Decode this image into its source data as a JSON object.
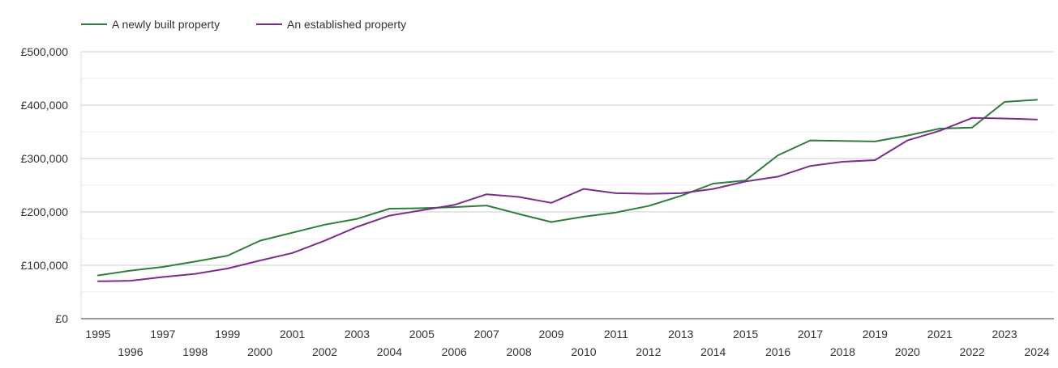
{
  "chart_data": {
    "type": "line",
    "title": "",
    "xlabel": "",
    "ylabel": "",
    "x": [
      "1995",
      "1996",
      "1997",
      "1998",
      "1999",
      "2000",
      "2001",
      "2002",
      "2003",
      "2004",
      "2005",
      "2006",
      "2007",
      "2008",
      "2009",
      "2010",
      "2011",
      "2012",
      "2013",
      "2014",
      "2015",
      "2016",
      "2017",
      "2018",
      "2019",
      "2020",
      "2021",
      "2022",
      "2023",
      "2024"
    ],
    "ylim": [
      0,
      500000
    ],
    "y_ticks": [
      0,
      100000,
      200000,
      300000,
      400000,
      500000
    ],
    "y_tick_labels": [
      "£0",
      "£100,000",
      "£200,000",
      "£300,000",
      "£400,000",
      "£500,000"
    ],
    "grid": true,
    "legend_position": "top-left",
    "series": [
      {
        "name": "A newly built property",
        "color": "#2e7d3a",
        "values": [
          81000,
          90000,
          97000,
          107000,
          118000,
          146000,
          161000,
          176000,
          187000,
          206000,
          207000,
          209000,
          212000,
          196000,
          181000,
          191000,
          199000,
          211000,
          230000,
          253000,
          259000,
          306000,
          334000,
          333000,
          332000,
          343000,
          356000,
          358000,
          406000,
          410000
        ]
      },
      {
        "name": "An established property",
        "color": "#7b2d8b",
        "values": [
          70000,
          71000,
          78000,
          84000,
          94000,
          109000,
          123000,
          146000,
          172000,
          193000,
          203000,
          213000,
          233000,
          228000,
          217000,
          243000,
          235000,
          234000,
          235000,
          243000,
          257000,
          266000,
          286000,
          294000,
          297000,
          334000,
          352000,
          376000,
          375000,
          373000
        ]
      }
    ]
  }
}
